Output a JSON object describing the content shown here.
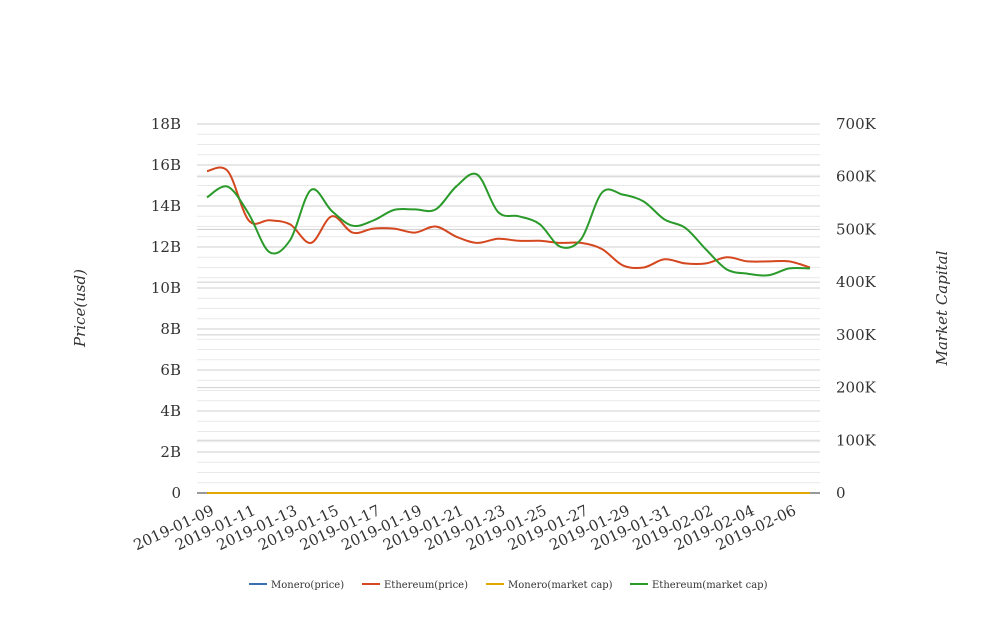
{
  "chart_data": {
    "type": "line",
    "title": "",
    "ylabel_left": "Price(usd)",
    "ylabel_right": "Market Capital",
    "x": [
      "2019-01-09",
      "2019-01-10",
      "2019-01-11",
      "2019-01-12",
      "2019-01-13",
      "2019-01-14",
      "2019-01-15",
      "2019-01-16",
      "2019-01-17",
      "2019-01-18",
      "2019-01-19",
      "2019-01-20",
      "2019-01-21",
      "2019-01-22",
      "2019-01-23",
      "2019-01-24",
      "2019-01-25",
      "2019-01-26",
      "2019-01-27",
      "2019-01-28",
      "2019-01-29",
      "2019-01-30",
      "2019-01-31",
      "2019-02-01",
      "2019-02-02",
      "2019-02-03",
      "2019-02-04",
      "2019-02-05",
      "2019-02-06",
      "2019-02-07"
    ],
    "x_ticks": [
      "2019-01-09",
      "2019-01-11",
      "2019-01-13",
      "2019-01-15",
      "2019-01-17",
      "2019-01-19",
      "2019-01-21",
      "2019-01-23",
      "2019-01-25",
      "2019-01-27",
      "2019-01-29",
      "2019-01-31",
      "2019-02-02",
      "2019-02-04",
      "2019-02-06"
    ],
    "y_left": {
      "ticks": [
        "0",
        "2B",
        "4B",
        "6B",
        "8B",
        "10B",
        "12B",
        "14B",
        "16B",
        "18B"
      ],
      "range": [
        0,
        18000000000
      ]
    },
    "y_right": {
      "ticks": [
        "0",
        "100K",
        "200K",
        "300K",
        "400K",
        "500K",
        "600K",
        "700K"
      ],
      "range": [
        0,
        700000
      ]
    },
    "grid": true,
    "legend_position": "bottom",
    "series": [
      {
        "name": "Monero(price)",
        "axis": "left",
        "color": "#3a6fb0",
        "values": [
          0,
          0,
          0,
          0,
          0,
          0,
          0,
          0,
          0,
          0,
          0,
          0,
          0,
          0,
          0,
          0,
          0,
          0,
          0,
          0,
          0,
          0,
          0,
          0,
          0,
          0,
          0,
          0,
          0,
          0
        ]
      },
      {
        "name": "Ethereum(price)",
        "axis": "left",
        "color": "#d4471f",
        "values": [
          15700000000,
          15700000000,
          13300000000,
          13300000000,
          13100000000,
          12200000000,
          13500000000,
          12700000000,
          12900000000,
          12900000000,
          12700000000,
          13000000000,
          12500000000,
          12200000000,
          12400000000,
          12300000000,
          12300000000,
          12200000000,
          12200000000,
          11900000000,
          11100000000,
          11000000000,
          11400000000,
          11200000000,
          11200000000,
          11500000000,
          11300000000,
          11300000000,
          11300000000,
          11000000000
        ]
      },
      {
        "name": "Monero(market cap)",
        "axis": "right",
        "color": "#e0a800",
        "values": [
          0,
          0,
          0,
          0,
          0,
          0,
          0,
          0,
          0,
          0,
          0,
          0,
          0,
          0,
          0,
          0,
          0,
          0,
          0,
          0,
          0,
          0,
          0,
          0,
          0,
          0,
          0,
          0,
          0,
          0
        ]
      },
      {
        "name": "Ethereum(market cap)",
        "axis": "right",
        "color": "#2a9a2a",
        "values": [
          561000,
          581000,
          530000,
          457000,
          480000,
          575000,
          535000,
          507000,
          517000,
          537000,
          538000,
          538000,
          582000,
          604000,
          533000,
          525000,
          510000,
          467000,
          482000,
          570000,
          566000,
          553000,
          519000,
          503000,
          462000,
          424000,
          416000,
          413000,
          426000,
          426000
        ]
      }
    ]
  }
}
